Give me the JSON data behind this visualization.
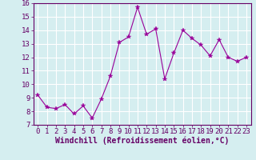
{
  "x": [
    0,
    1,
    2,
    3,
    4,
    5,
    6,
    7,
    8,
    9,
    10,
    11,
    12,
    13,
    14,
    15,
    16,
    17,
    18,
    19,
    20,
    21,
    22,
    23
  ],
  "y": [
    9.2,
    8.3,
    8.2,
    8.5,
    7.8,
    8.4,
    7.5,
    8.9,
    10.6,
    13.1,
    13.5,
    15.7,
    13.7,
    14.1,
    10.4,
    12.3,
    14.0,
    13.4,
    12.9,
    12.1,
    13.3,
    12.0,
    11.7,
    12.0
  ],
  "line_color": "#990099",
  "marker": "*",
  "marker_size": 4,
  "bg_color": "#d5eef0",
  "grid_color": "#ffffff",
  "xlabel": "Windchill (Refroidissement éolien,°C)",
  "xlabel_color": "#660066",
  "xlabel_fontsize": 7,
  "tick_fontsize": 6.5,
  "tick_color": "#660066",
  "ylim": [
    7,
    16
  ],
  "xlim": [
    -0.5,
    23.5
  ],
  "yticks": [
    7,
    8,
    9,
    10,
    11,
    12,
    13,
    14,
    15,
    16
  ],
  "xticks": [
    0,
    1,
    2,
    3,
    4,
    5,
    6,
    7,
    8,
    9,
    10,
    11,
    12,
    13,
    14,
    15,
    16,
    17,
    18,
    19,
    20,
    21,
    22,
    23
  ]
}
